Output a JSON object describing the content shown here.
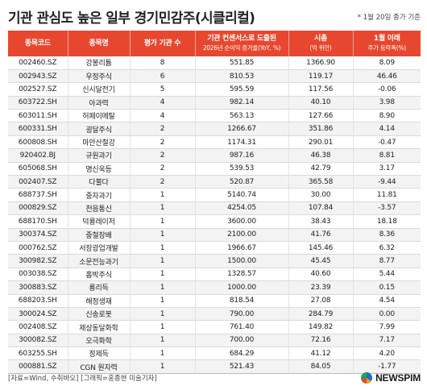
{
  "title": "기관 관심도 높은 일부 경기민감주(시클리컬)",
  "note": "* 1월 20일 종가 기준",
  "table": {
    "headers": [
      {
        "main": "종목코드",
        "sub": ""
      },
      {
        "main": "종목명",
        "sub": ""
      },
      {
        "main": "평가 기관 수",
        "sub": ""
      },
      {
        "main": "기관 컨센서스로 도출된",
        "sub": "2026년 순이익 증가율(YoY, %)"
      },
      {
        "main": "시총",
        "sub": "(억 위안)"
      },
      {
        "main": "1월 이래",
        "sub": "주가 등락폭(%)"
      }
    ],
    "rows": [
      [
        "002460.SZ",
        "강봉리튬",
        "8",
        "551.85",
        "1366.90",
        "8.09"
      ],
      [
        "002943.SZ",
        "우정주식",
        "6",
        "810.53",
        "119.17",
        "46.46"
      ],
      [
        "002527.SZ",
        "신시달전기",
        "5",
        "595.59",
        "117.56",
        "-0.06"
      ],
      [
        "603722.SH",
        "아과력",
        "4",
        "982.14",
        "40.10",
        "3.98"
      ],
      [
        "603011.SH",
        "허페이메탈",
        "4",
        "563.13",
        "127.66",
        "8.90"
      ],
      [
        "600331.SH",
        "굉달주식",
        "2",
        "1266.67",
        "351.86",
        "4.14"
      ],
      [
        "600808.SH",
        "마안산철강",
        "2",
        "1174.31",
        "290.01",
        "-0.47"
      ],
      [
        "920402.BJ",
        "규원과기",
        "2",
        "987.16",
        "46.38",
        "8.81"
      ],
      [
        "605068.SH",
        "명신욱등",
        "2",
        "539.53",
        "42.79",
        "3.17"
      ],
      [
        "002407.SZ",
        "다불다",
        "2",
        "520.87",
        "365.58",
        "-9.44"
      ],
      [
        "688737.SH",
        "중자과기",
        "1",
        "5140.74",
        "30.00",
        "11.81"
      ],
      [
        "000829.SZ",
        "천음통신",
        "1",
        "4254.05",
        "107.84",
        "-3.57"
      ],
      [
        "688170.SH",
        "덕룡레이저",
        "1",
        "3600.00",
        "38.43",
        "18.18"
      ],
      [
        "300374.SZ",
        "중철장배",
        "1",
        "2100.00",
        "41.76",
        "8.36"
      ],
      [
        "000762.SZ",
        "서장광업개발",
        "1",
        "1966.67",
        "145.46",
        "6.32"
      ],
      [
        "300982.SZ",
        "소문전능과기",
        "1",
        "1500.00",
        "45.45",
        "8.77"
      ],
      [
        "003038.SZ",
        "홉박주식",
        "1",
        "1328.57",
        "40.60",
        "5.44"
      ],
      [
        "300883.SZ",
        "룡리득",
        "1",
        "1000.00",
        "23.39",
        "0.15"
      ],
      [
        "688203.SH",
        "해정생재",
        "1",
        "818.54",
        "27.08",
        "4.54"
      ],
      [
        "300024.SZ",
        "신송로봇",
        "1",
        "790.00",
        "284.79",
        "0.00"
      ],
      [
        "002408.SZ",
        "제상동달화학",
        "1",
        "761.40",
        "149.82",
        "7.99"
      ],
      [
        "300082.SZ",
        "오극화학",
        "1",
        "700.00",
        "72.16",
        "7.17"
      ],
      [
        "603255.SH",
        "정제득",
        "1",
        "684.29",
        "41.12",
        "4.20"
      ],
      [
        "000881.SZ",
        "CGN 원자력",
        "1",
        "521.43",
        "84.05",
        "-1.77"
      ]
    ]
  },
  "footer": {
    "source": "[자료=Wind, 수취바오] [그래픽=홍종현 미술기자]",
    "logo_text": "NEWSPIM"
  },
  "colors": {
    "header_bg": "#e8472f",
    "header_text": "#ffffff",
    "stripe": "#f3f3f3"
  }
}
